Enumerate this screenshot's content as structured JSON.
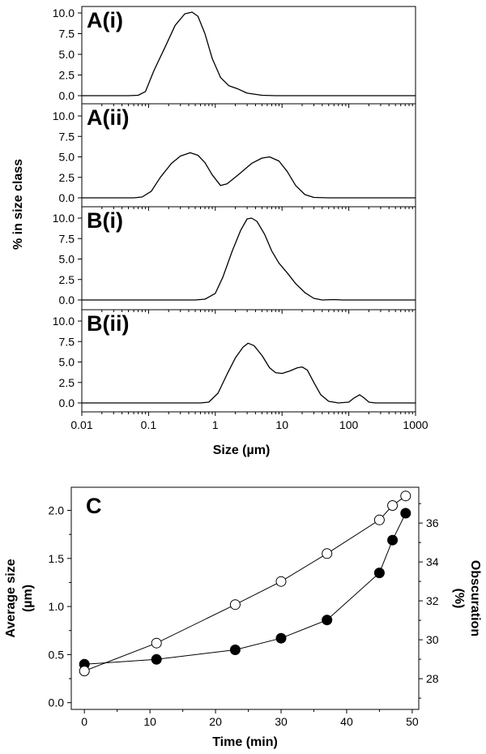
{
  "chart_data": [
    {
      "type": "line",
      "panel": "A(i)",
      "xscale": "log",
      "xlim": [
        0.01,
        1000
      ],
      "ylim": [
        0,
        10
      ],
      "yticks": [
        "0.0",
        "2.5",
        "5.0",
        "7.5",
        "10.0"
      ],
      "points": [
        [
          0.01,
          0
        ],
        [
          0.05,
          0
        ],
        [
          0.07,
          0.05
        ],
        [
          0.09,
          0.5
        ],
        [
          0.12,
          3.0
        ],
        [
          0.18,
          6.0
        ],
        [
          0.25,
          8.5
        ],
        [
          0.35,
          9.9
        ],
        [
          0.45,
          10.1
        ],
        [
          0.55,
          9.6
        ],
        [
          0.7,
          7.5
        ],
        [
          0.9,
          4.5
        ],
        [
          1.2,
          2.2
        ],
        [
          1.6,
          1.2
        ],
        [
          2.2,
          0.8
        ],
        [
          3,
          0.3
        ],
        [
          5,
          0.05
        ],
        [
          8,
          0
        ],
        [
          1000,
          0
        ]
      ]
    },
    {
      "type": "line",
      "panel": "A(ii)",
      "xscale": "log",
      "xlim": [
        0.01,
        1000
      ],
      "ylim": [
        0,
        10
      ],
      "yticks": [
        "0.0",
        "2.5",
        "5.0",
        "7.5",
        "10.0"
      ],
      "points": [
        [
          0.01,
          0
        ],
        [
          0.06,
          0
        ],
        [
          0.08,
          0.1
        ],
        [
          0.11,
          0.8
        ],
        [
          0.15,
          2.5
        ],
        [
          0.22,
          4.2
        ],
        [
          0.3,
          5.1
        ],
        [
          0.42,
          5.5
        ],
        [
          0.55,
          5.2
        ],
        [
          0.7,
          4.3
        ],
        [
          0.9,
          2.8
        ],
        [
          1.2,
          1.5
        ],
        [
          1.5,
          1.7
        ],
        [
          2.2,
          2.8
        ],
        [
          3.5,
          4.2
        ],
        [
          5,
          4.85
        ],
        [
          6.5,
          5.0
        ],
        [
          9,
          4.5
        ],
        [
          12,
          3.2
        ],
        [
          16,
          1.5
        ],
        [
          22,
          0.4
        ],
        [
          30,
          0.05
        ],
        [
          50,
          0
        ],
        [
          1000,
          0
        ]
      ]
    },
    {
      "type": "line",
      "panel": "B(i)",
      "xscale": "log",
      "xlim": [
        0.01,
        1000
      ],
      "ylim": [
        0,
        10
      ],
      "yticks": [
        "0.0",
        "2.5",
        "5.0",
        "7.5",
        "10.0"
      ],
      "points": [
        [
          0.01,
          0
        ],
        [
          0.5,
          0
        ],
        [
          0.7,
          0.1
        ],
        [
          1,
          0.8
        ],
        [
          1.3,
          2.8
        ],
        [
          1.8,
          6.0
        ],
        [
          2.4,
          8.5
        ],
        [
          3,
          9.9
        ],
        [
          3.5,
          10.0
        ],
        [
          4.2,
          9.6
        ],
        [
          5.5,
          8.0
        ],
        [
          7,
          6.0
        ],
        [
          9,
          4.5
        ],
        [
          12,
          3.3
        ],
        [
          16,
          2.0
        ],
        [
          22,
          0.9
        ],
        [
          30,
          0.2
        ],
        [
          40,
          0
        ],
        [
          60,
          0.05
        ],
        [
          80,
          0
        ],
        [
          1000,
          0
        ]
      ]
    },
    {
      "type": "line",
      "panel": "B(ii)",
      "xscale": "log",
      "xlim": [
        0.01,
        1000
      ],
      "ylim": [
        0,
        10
      ],
      "yticks": [
        "0.0",
        "2.5",
        "5.0",
        "7.5",
        "10.0"
      ],
      "points": [
        [
          0.01,
          0
        ],
        [
          0.6,
          0
        ],
        [
          0.8,
          0.1
        ],
        [
          1.1,
          1.2
        ],
        [
          1.5,
          3.5
        ],
        [
          2,
          5.5
        ],
        [
          2.6,
          6.8
        ],
        [
          3.1,
          7.3
        ],
        [
          3.8,
          7.0
        ],
        [
          5,
          5.8
        ],
        [
          6.5,
          4.3
        ],
        [
          8,
          3.7
        ],
        [
          10,
          3.6
        ],
        [
          13,
          3.9
        ],
        [
          17,
          4.3
        ],
        [
          20,
          4.4
        ],
        [
          24,
          4.0
        ],
        [
          30,
          2.5
        ],
        [
          38,
          1.0
        ],
        [
          50,
          0.2
        ],
        [
          70,
          0
        ],
        [
          100,
          0.1
        ],
        [
          120,
          0.6
        ],
        [
          145,
          1.0
        ],
        [
          170,
          0.6
        ],
        [
          200,
          0.1
        ],
        [
          250,
          0
        ],
        [
          1000,
          0
        ]
      ]
    },
    {
      "type": "scatter",
      "panel": "C",
      "xlabel": "Time (min)",
      "xlim": [
        -2,
        51
      ],
      "xticks": [
        "0",
        "10",
        "20",
        "30",
        "40",
        "50"
      ],
      "ylabel_left_line1": "Average size",
      "ylabel_left_line2": "(µm)",
      "ylim_left": [
        -0.07,
        2.24
      ],
      "yticks_left": [
        "0.0",
        "0.5",
        "1.0",
        "1.5",
        "2.0"
      ],
      "ylabel_right_line1": "Obscuration",
      "ylabel_right_line2": "(%)",
      "ylim_right": [
        26.42,
        37.84
      ],
      "yticks_right": [
        "28",
        "30",
        "32",
        "34",
        "36"
      ],
      "series": [
        {
          "marker": "open-circle",
          "axis": "left",
          "x": [
            0,
            11,
            23,
            30,
            37,
            45,
            47,
            49
          ],
          "y": [
            0.33,
            0.62,
            1.02,
            1.26,
            1.55,
            1.9,
            2.05,
            2.15
          ]
        },
        {
          "marker": "filled-circle",
          "axis": "left",
          "x": [
            0,
            11,
            23,
            30,
            37,
            45,
            47,
            49
          ],
          "y": [
            0.4,
            0.45,
            0.55,
            0.67,
            0.86,
            1.35,
            1.69,
            1.97
          ]
        }
      ]
    }
  ],
  "shared": {
    "ylabel_top": "% in size class",
    "xlabel_top_prefix": "Size (",
    "xlabel_top_unit": "µm",
    "xlabel_top_suffix": ")",
    "xticks_log": [
      "0.01",
      "0.1",
      "1",
      "10",
      "100",
      "1000"
    ]
  }
}
